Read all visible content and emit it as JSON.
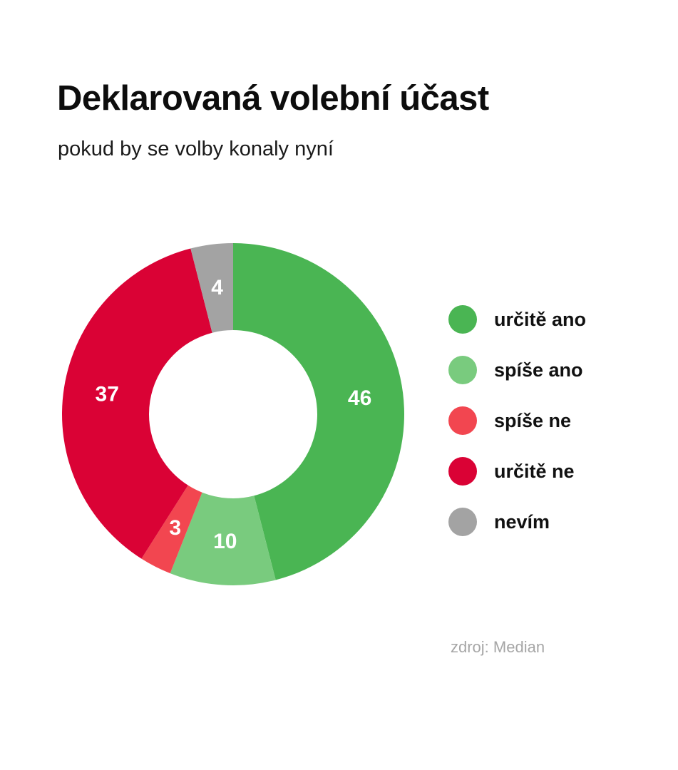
{
  "chart_data": {
    "type": "pie",
    "title": "Deklarovaná volební účast",
    "subtitle": "pokud by se volby konaly nyní",
    "donut": true,
    "legend_position": "right",
    "slices": [
      {
        "label": "určitě ano",
        "value": 46,
        "value_label": "46",
        "color": "#4ab553"
      },
      {
        "label": "spíše ano",
        "value": 10,
        "value_label": "10",
        "color": "#79cb7e"
      },
      {
        "label": "spíše ne",
        "value": 3,
        "value_label": "3",
        "color": "#f24650"
      },
      {
        "label": "určitě ne",
        "value": 37,
        "value_label": "37",
        "color": "#da0235"
      },
      {
        "label": "nevím",
        "value": 4,
        "value_label": "4",
        "color": "#a3a3a3"
      }
    ],
    "source": "zdroj: Median"
  }
}
